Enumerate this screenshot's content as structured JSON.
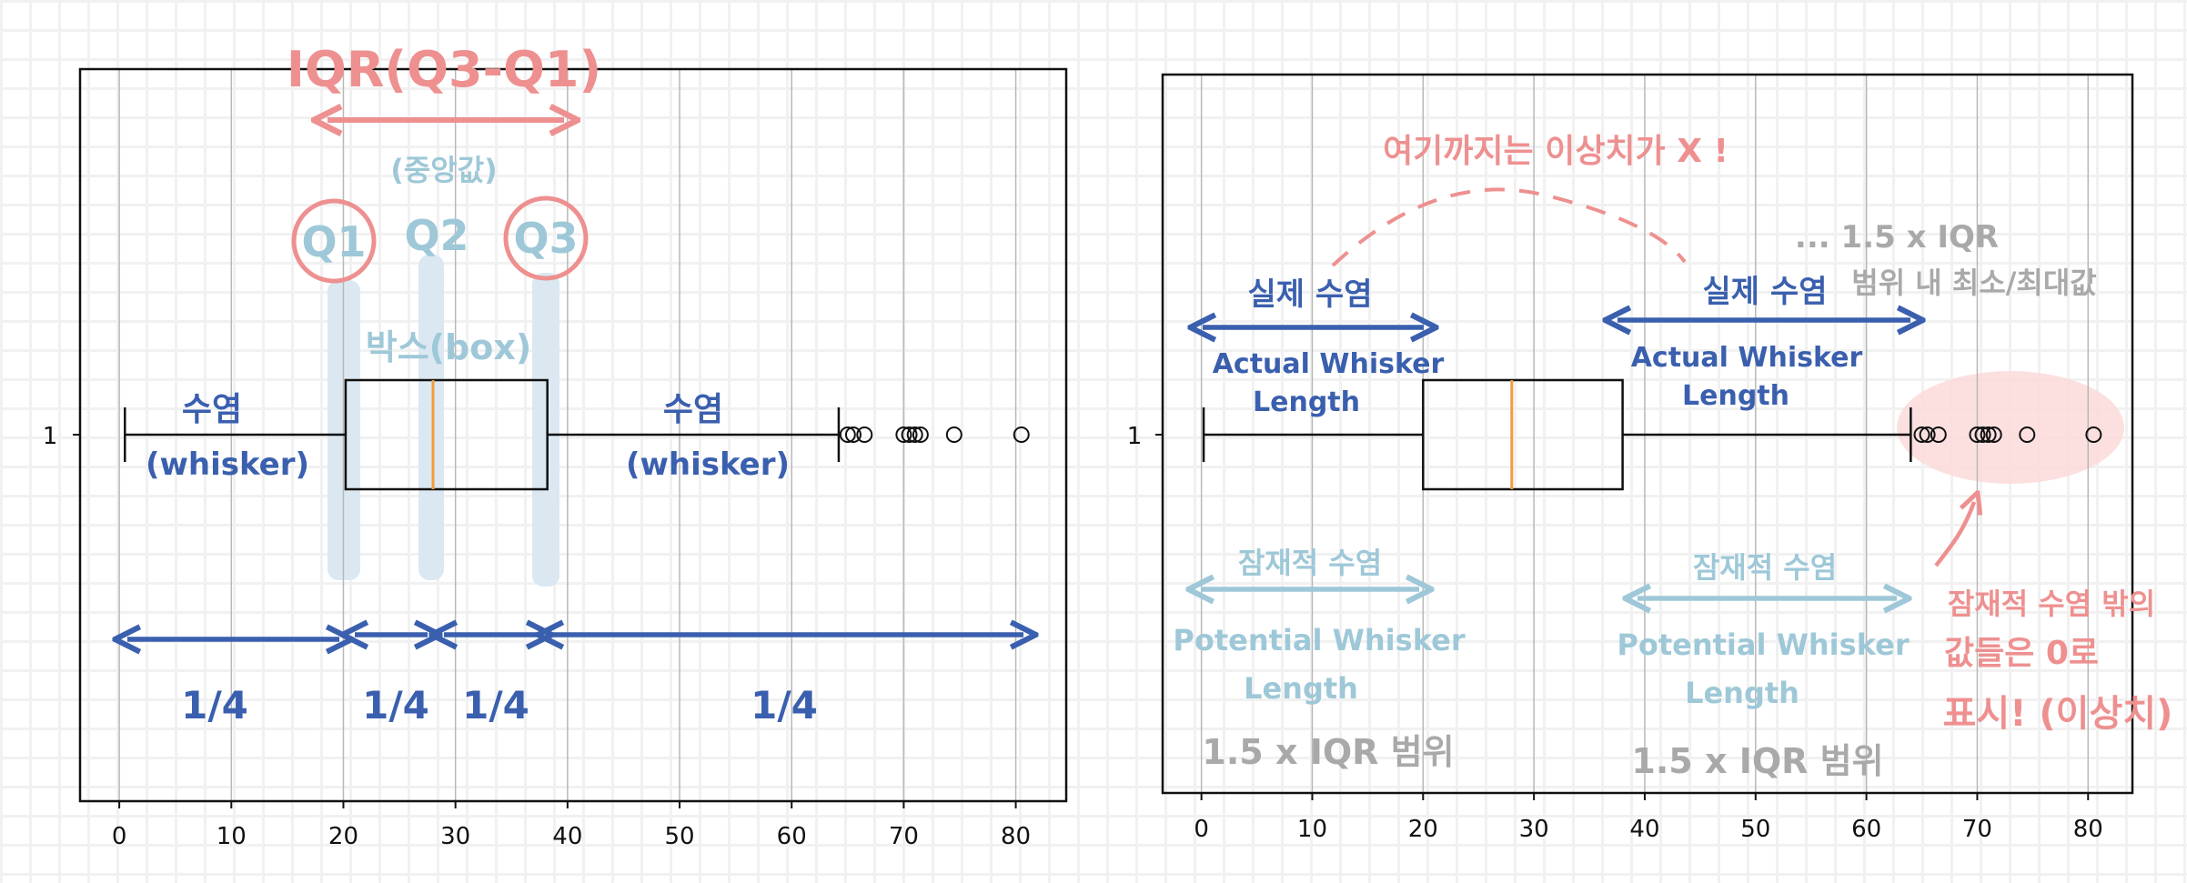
{
  "chart_data": [
    {
      "type": "box",
      "panel": "left",
      "y_tick_labels": [
        "1"
      ],
      "x_tick_labels": [
        "0",
        "10",
        "20",
        "30",
        "40",
        "50",
        "60",
        "70",
        "80"
      ],
      "xlim": [
        -3.5,
        84.5
      ],
      "grid": "vertical",
      "box": {
        "whisker_low": 0.5,
        "q1": 20.2,
        "median": 28.0,
        "q3": 38.2,
        "whisker_high": 64.2
      },
      "outliers": [
        65.0,
        65.5,
        66.5,
        70.0,
        70.5,
        71.0,
        71.5,
        74.5,
        80.5
      ],
      "annotations": {
        "iqr": "IQR(Q3-Q1)",
        "median_note": "(중앙값)",
        "q1": "Q1",
        "q2": "Q2",
        "q3": "Q3",
        "box": "박스(box)",
        "whisker_kr": "수염",
        "whisker_en": "(whisker)",
        "quarter": "1/4"
      }
    },
    {
      "type": "box",
      "panel": "right",
      "y_tick_labels": [
        "1"
      ],
      "x_tick_labels": [
        "0",
        "10",
        "20",
        "30",
        "40",
        "50",
        "60",
        "70",
        "80"
      ],
      "xlim": [
        -3.5,
        84.0
      ],
      "grid": "vertical",
      "box": {
        "whisker_low": 0.2,
        "q1": 20.0,
        "median": 28.0,
        "q3": 38.0,
        "whisker_high": 64.0
      },
      "outliers": [
        65.0,
        65.5,
        66.5,
        70.0,
        70.5,
        71.0,
        71.5,
        74.5,
        80.5
      ],
      "annotations": {
        "not_outlier": "여기까지는 이상치가 X !",
        "range_note_1": "... 1.5 x IQR",
        "range_note_2": "범위 내 최소/최대값",
        "actual_kr": "실제 수염",
        "actual_en_1": "Actual Whisker",
        "actual_en_2": "Length",
        "potential_kr": "잠재적 수염",
        "potential_en_1": "Potential Whisker",
        "potential_en_2": "Length",
        "range": "1.5 x IQR 범위",
        "outside_1": "잠재적 수염 밖의",
        "outside_2": "값들은 0로",
        "outside_3": "표시! (이상치)"
      }
    }
  ],
  "colors": {
    "blue": "#3a5fae",
    "lightblue": "#9ec8d8",
    "pink": "#ee9090",
    "gray": "#a9a9a9",
    "median": "#f39c3c",
    "highlight_blue": "#dbe8f1",
    "highlight_pink": "#fbdada"
  }
}
